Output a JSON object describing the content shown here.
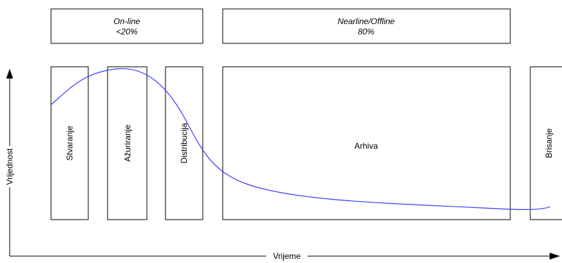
{
  "header_boxes": {
    "online": {
      "line1": "On-line",
      "line2": "<20%"
    },
    "nearline": {
      "line1": "Nearline/Offline",
      "line2": "80%"
    }
  },
  "stages": {
    "stvaranje": "Stvaranje",
    "azuriranje": "Ažuriranje",
    "distribucija": "Distribucija",
    "arhiva": "Arhiva",
    "brisanje": "Brisanje"
  },
  "axes": {
    "y_label": "Vrijednost",
    "x_label": "Vrijeme"
  },
  "colors": {
    "curve": "#3b3bff",
    "stroke": "#000000"
  }
}
